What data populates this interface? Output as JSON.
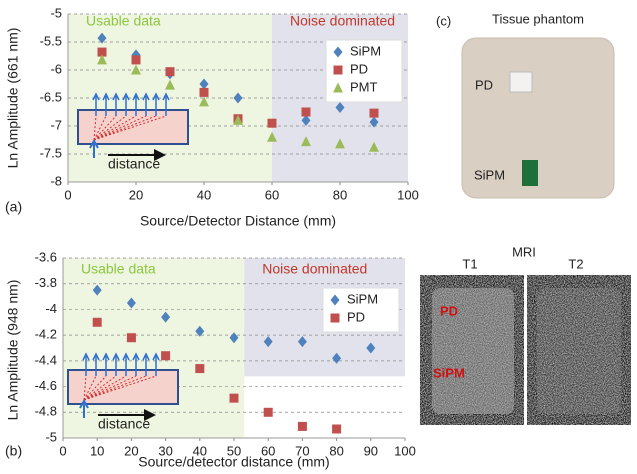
{
  "chart_data": [
    {
      "type": "scatter",
      "panel_label": "(a)",
      "y_label": "Ln Amplitude  (661 nm)",
      "x_label": "Source/Detector Distance (mm)",
      "xlim": [
        0,
        100
      ],
      "xticks": [
        0,
        20,
        40,
        60,
        80,
        100
      ],
      "ylim": [
        -8,
        -5
      ],
      "yticks": [
        -8,
        -7.5,
        -7,
        -6.5,
        -6,
        -5.5,
        -5
      ],
      "grid": true,
      "legend": "upper right",
      "regions": [
        {
          "label": "Usable data",
          "xlim": [
            0,
            60
          ],
          "color": "#eef6e1",
          "text_color": "#8dc63f"
        },
        {
          "label": "Noise dominated",
          "xlim": [
            60,
            100
          ],
          "color": "#e2e2ec",
          "text_color": "#c0392b"
        }
      ],
      "inset_label": "distance",
      "x": [
        10,
        20,
        30,
        40,
        50,
        60,
        70,
        80,
        90
      ],
      "series": [
        {
          "name": "SiPM",
          "color": "#4f81bd",
          "marker": "diamond",
          "values": [
            -5.43,
            -5.73,
            -6.07,
            -6.25,
            -6.5,
            null,
            -6.9,
            -6.67,
            -6.93
          ]
        },
        {
          "name": "PD",
          "color": "#c0504d",
          "marker": "square",
          "values": [
            -5.68,
            -5.82,
            -6.03,
            -6.4,
            -6.87,
            -6.95,
            -6.75,
            null,
            -6.77
          ]
        },
        {
          "name": "PMT",
          "color": "#9bbb59",
          "marker": "triangle",
          "values": [
            -5.82,
            -6.0,
            -6.27,
            -6.57,
            -6.9,
            -7.2,
            -7.28,
            -7.32,
            -7.38
          ]
        }
      ]
    },
    {
      "type": "scatter",
      "panel_label": "(b)",
      "y_label": "Ln Amplitude  (948 nm)",
      "x_label": "Source/detector distance (mm)",
      "xlim": [
        0,
        100
      ],
      "xticks": [
        0,
        10,
        20,
        30,
        40,
        50,
        60,
        70,
        80,
        90,
        100
      ],
      "ylim": [
        -5,
        -3.6
      ],
      "yticks": [
        -5,
        -4.8,
        -4.6,
        -4.4,
        -4.2,
        -4,
        -3.8,
        -3.6
      ],
      "grid": true,
      "legend": "upper right",
      "regions": [
        {
          "label": "Usable data",
          "xlim": [
            0,
            53
          ],
          "color": "#eef6e1",
          "text_color": "#8dc63f"
        },
        {
          "label": "Noise dominated",
          "xlim": [
            53,
            100
          ],
          "ylim": [
            -4.52,
            -3.6
          ],
          "color": "#e2e2ec",
          "text_color": "#c0392b"
        }
      ],
      "inset_label": "distance",
      "x": [
        10,
        20,
        30,
        40,
        50,
        60,
        70,
        80,
        90
      ],
      "series": [
        {
          "name": "SiPM",
          "color": "#4f81bd",
          "marker": "diamond",
          "values": [
            -3.85,
            -3.95,
            -4.06,
            -4.17,
            -4.22,
            -4.25,
            -4.25,
            -4.38,
            -4.3
          ]
        },
        {
          "name": "PD",
          "color": "#c0504d",
          "marker": "square",
          "values": [
            -4.1,
            -4.22,
            -4.36,
            -4.46,
            -4.69,
            -4.8,
            -4.91,
            -4.93,
            null
          ]
        }
      ]
    }
  ],
  "photo": {
    "panel_label": "(c)",
    "title": "Tissue phantom",
    "labels": [
      "PD",
      "SiPM"
    ]
  },
  "mri": {
    "title": "MRI",
    "panels": [
      "T1",
      "T2"
    ],
    "labels": [
      "PD",
      "SiPM"
    ]
  }
}
